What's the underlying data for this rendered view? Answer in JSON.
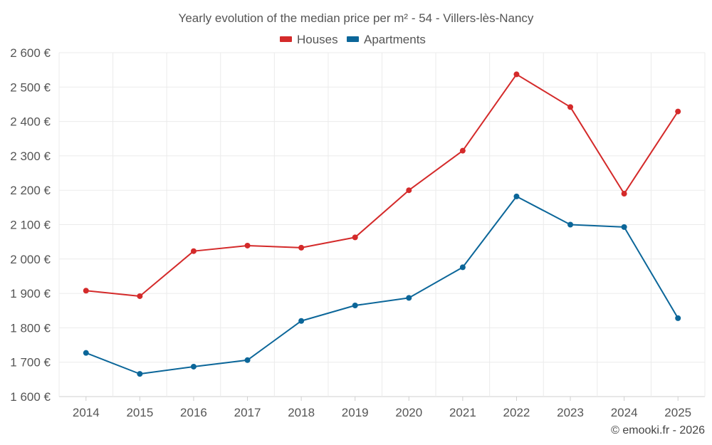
{
  "chart_data": {
    "type": "line",
    "title": "Yearly evolution of the median price per m² - 54 - Villers-lès-Nancy",
    "categories": [
      "2014",
      "2015",
      "2016",
      "2017",
      "2018",
      "2019",
      "2020",
      "2021",
      "2022",
      "2023",
      "2024",
      "2025"
    ],
    "series": [
      {
        "name": "Houses",
        "color": "#d42a2a",
        "values": [
          1908,
          1892,
          2023,
          2039,
          2033,
          2063,
          2200,
          2315,
          2537,
          2442,
          2190,
          2429
        ]
      },
      {
        "name": "Apartments",
        "color": "#0b6699",
        "values": [
          1727,
          1666,
          1687,
          1706,
          1820,
          1865,
          1887,
          1976,
          2182,
          2100,
          2093,
          1828
        ]
      }
    ],
    "ylim": [
      1600,
      2600
    ],
    "yticks": [
      1600,
      1700,
      1800,
      1900,
      2000,
      2100,
      2200,
      2300,
      2400,
      2500,
      2600
    ],
    "ytick_labels": [
      "1 600 €",
      "1 700 €",
      "1 800 €",
      "1 900 €",
      "2 000 €",
      "2 100 €",
      "2 200 €",
      "2 300 €",
      "2 400 €",
      "2 500 €",
      "2 600 €"
    ],
    "legend_position": "top-center",
    "grid": true,
    "xlabel": "",
    "ylabel": ""
  },
  "credit": "© emooki.fr - 2026"
}
